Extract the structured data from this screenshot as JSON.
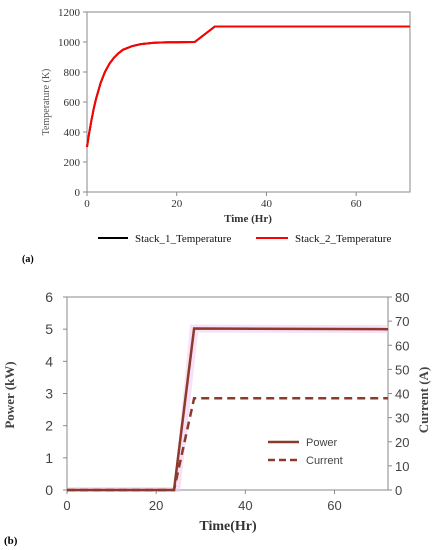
{
  "chart_data": [
    {
      "type": "line",
      "panel_label": "(a)",
      "xlabel": "Time (Hr)",
      "ylabel": "Temperature (K)",
      "xlim": [
        0,
        72
      ],
      "ylim": [
        0,
        1200
      ],
      "x_ticks": [
        "0",
        "20",
        "40",
        "60"
      ],
      "y_ticks": [
        "0",
        "200",
        "400",
        "600",
        "800",
        "1000",
        "1200"
      ],
      "legend_position": "bottom",
      "grid": false,
      "series": [
        {
          "name": "Stack_1_Temperature",
          "color": "#000000",
          "x": [
            0,
            0.5,
            1,
            1.5,
            2,
            3,
            4,
            5,
            6,
            7,
            8,
            10,
            12,
            15,
            18,
            20,
            24,
            28.5,
            30,
            40,
            50,
            60,
            72
          ],
          "y": [
            300,
            395,
            480,
            555,
            620,
            725,
            800,
            855,
            895,
            925,
            948,
            972,
            986,
            995,
            998,
            999,
            1000,
            1103,
            1103,
            1103,
            1103,
            1103,
            1103
          ]
        },
        {
          "name": "Stack_2_Temperature",
          "color": "#ff0000",
          "x": [
            0,
            0.5,
            1,
            1.5,
            2,
            3,
            4,
            5,
            6,
            7,
            8,
            10,
            12,
            15,
            18,
            20,
            24,
            28.5,
            30,
            40,
            50,
            60,
            72
          ],
          "y": [
            300,
            395,
            480,
            555,
            620,
            725,
            800,
            855,
            895,
            925,
            948,
            972,
            986,
            995,
            998,
            999,
            1000,
            1103,
            1103,
            1103,
            1103,
            1103,
            1103
          ]
        }
      ]
    },
    {
      "type": "line",
      "panel_label": "(b)",
      "xlabel": "Time(Hr)",
      "ylabel": "Power (kW)",
      "ylabel_right": "Current (A)",
      "xlim": [
        0,
        72
      ],
      "ylim": [
        0,
        6
      ],
      "ylim_right": [
        0,
        80
      ],
      "x_ticks": [
        "0",
        "20",
        "40",
        "60"
      ],
      "y_ticks": [
        "0",
        "1",
        "2",
        "3",
        "4",
        "5",
        "6"
      ],
      "y_ticks_right": [
        "0",
        "10",
        "20",
        "30",
        "40",
        "50",
        "60",
        "70",
        "80"
      ],
      "legend_position": "bottom-right",
      "grid": false,
      "series": [
        {
          "name": "Power",
          "axis": "left",
          "color": "#8b3a2b",
          "style": "solid",
          "x": [
            0,
            24,
            28.5,
            72
          ],
          "y": [
            0,
            0,
            5.02,
            5.0
          ]
        },
        {
          "name": "Current",
          "axis": "right",
          "color": "#8b3a2b",
          "style": "dashed",
          "x": [
            0,
            24,
            28.5,
            72
          ],
          "y": [
            0,
            0,
            38,
            38
          ]
        }
      ]
    }
  ]
}
